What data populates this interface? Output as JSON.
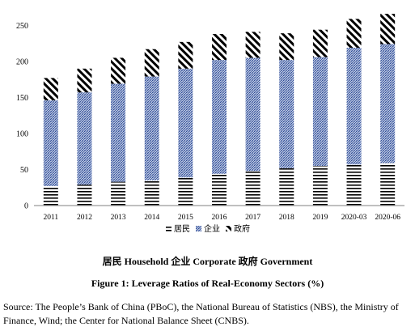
{
  "chart_data": {
    "type": "bar",
    "stacked": true,
    "categories": [
      "2011",
      "2012",
      "2013",
      "2014",
      "2015",
      "2016",
      "2017",
      "2018",
      "2019",
      "2020-03",
      "2020-06"
    ],
    "series": [
      {
        "name": "居民",
        "values": [
          27,
          29,
          33,
          35,
          39,
          44,
          48,
          52,
          55,
          57,
          59
        ]
      },
      {
        "name": "企业",
        "values": [
          119,
          128,
          136,
          144,
          151,
          158,
          157,
          150,
          151,
          162,
          165
        ]
      },
      {
        "name": "政府",
        "values": [
          31,
          33,
          36,
          38,
          37,
          36,
          36,
          37,
          38,
          40,
          42
        ]
      }
    ],
    "yticks": [
      0,
      50,
      100,
      150,
      200,
      250
    ],
    "ylim": [
      0,
      265
    ],
    "grid": false,
    "legend": "bottom",
    "colors": {
      "居民": "#000000",
      "企业": "#1f3f8f",
      "政府": "#000000"
    }
  },
  "caption_main": "居民 Household 企业 Corporate 政府 Government",
  "caption_figure": "Figure 1: Leverage Ratios of Real-Economy Sectors (%)",
  "source": "Source: The People’s Bank of China (PBoC), the National Bureau of Statistics (NBS), the Ministry of Finance, Wind; the Center for National Balance Sheet (CNBS)."
}
